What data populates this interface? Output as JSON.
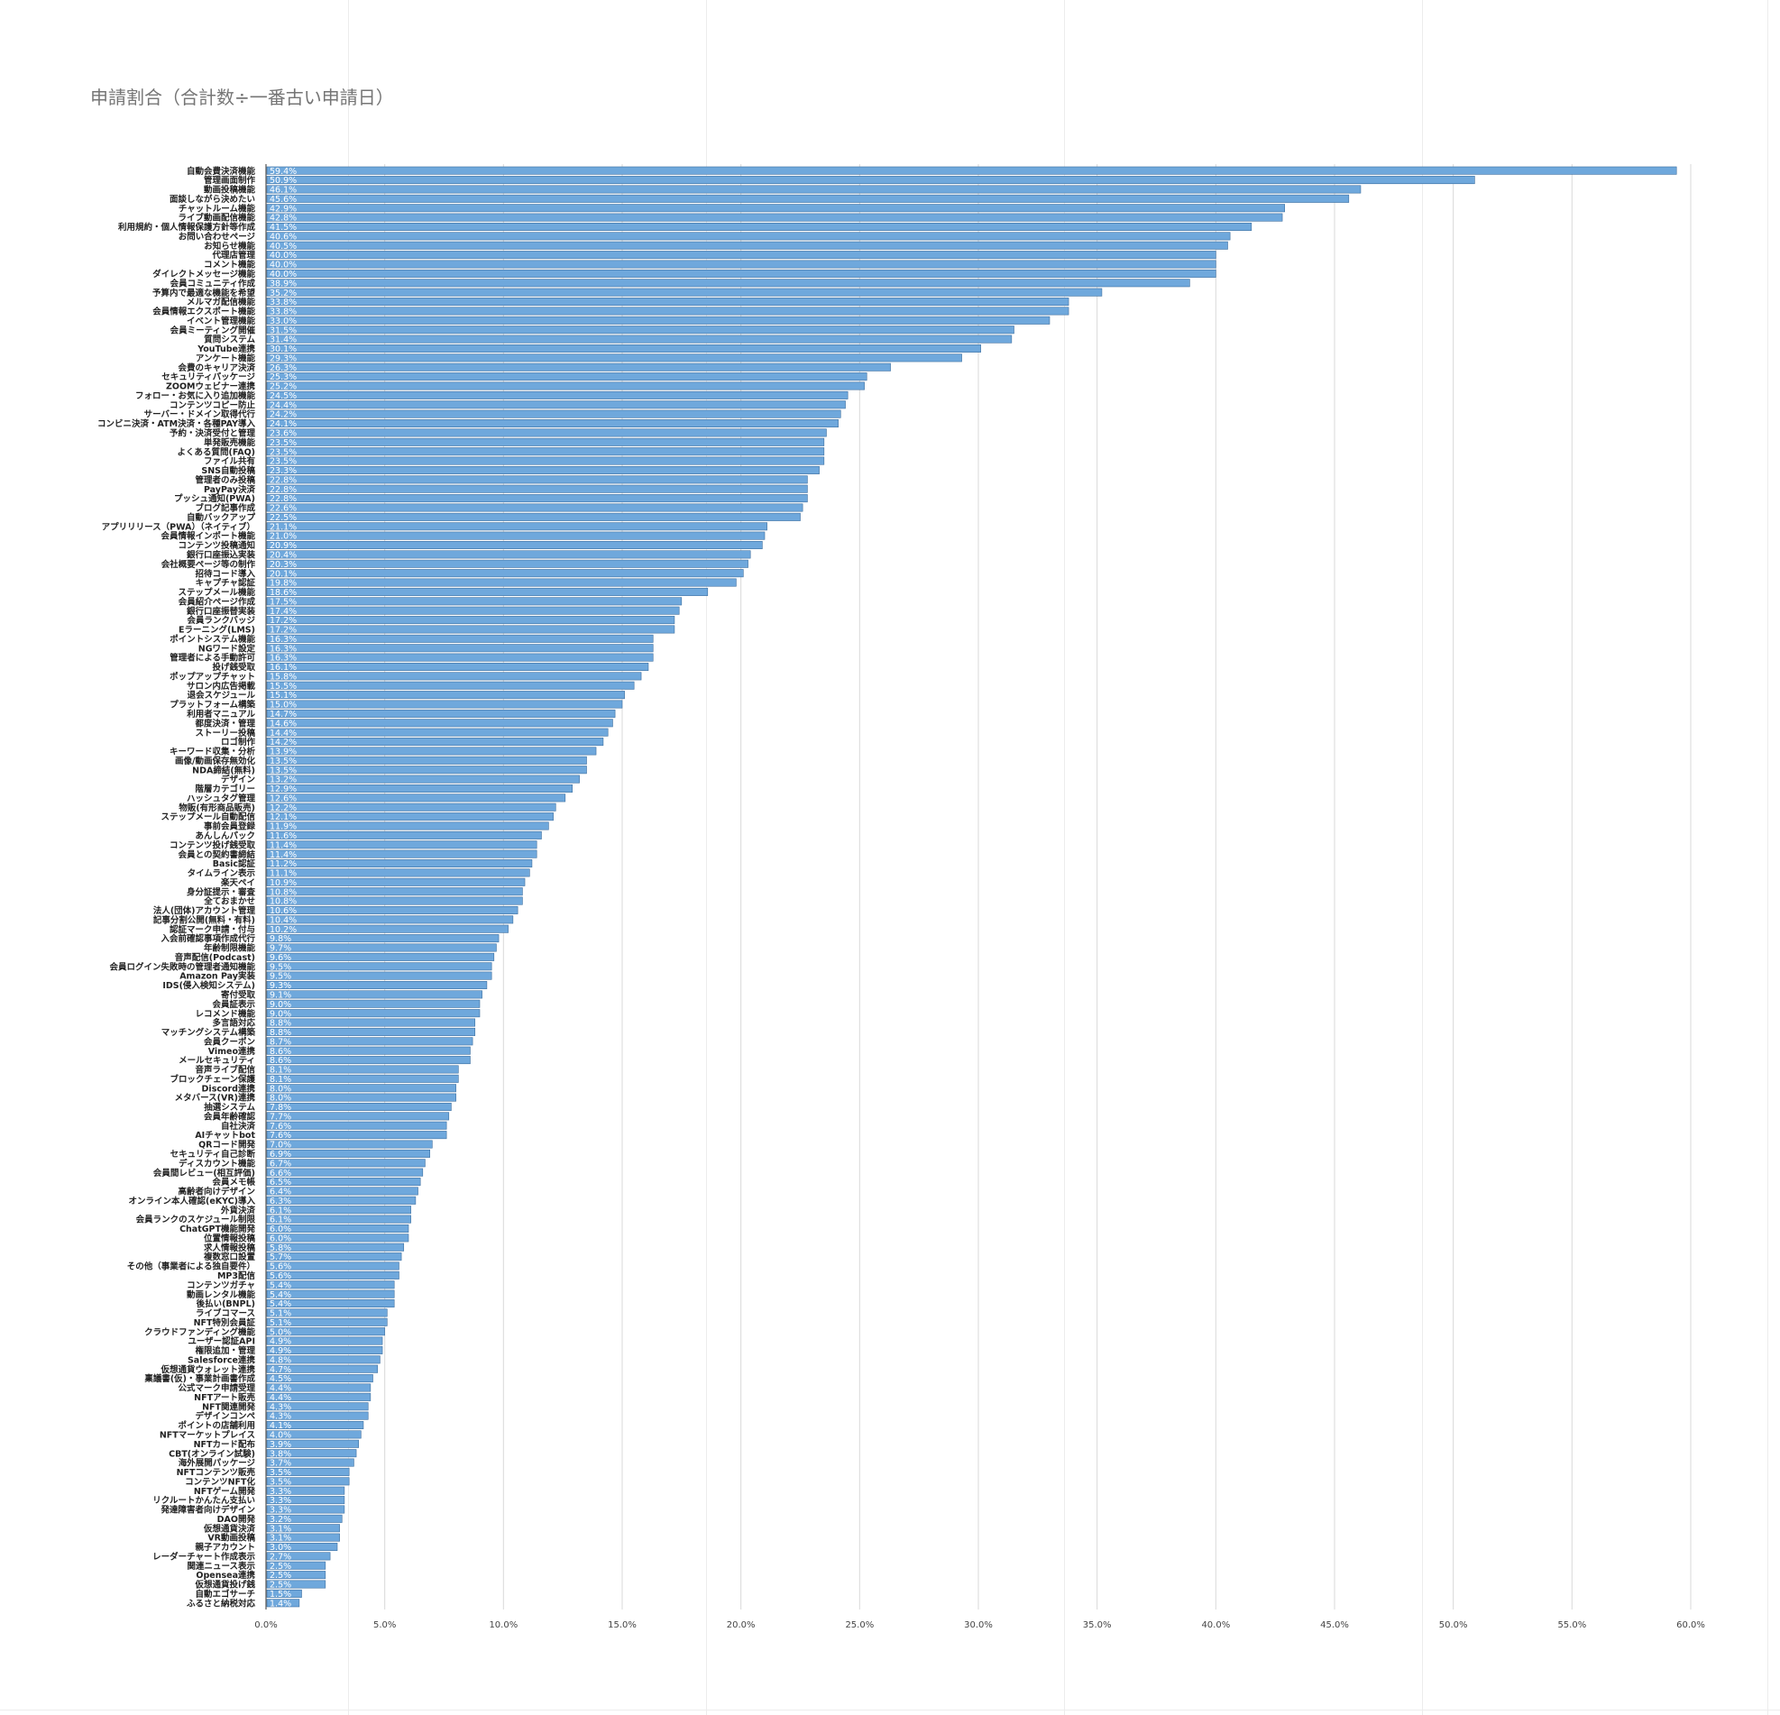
{
  "chart_data": {
    "type": "bar",
    "orientation": "horizontal",
    "title": "申請割合（合計数÷一番古い申請日）",
    "xlim": [
      0,
      60
    ],
    "x_ticks": [
      "0.0%",
      "5.0%",
      "10.0%",
      "15.0%",
      "20.0%",
      "25.0%",
      "30.0%",
      "35.0%",
      "40.0%",
      "45.0%",
      "50.0%",
      "55.0%",
      "60.0%"
    ],
    "grid": true,
    "bar_color": "#6fa8dc",
    "categories": [
      "自動会費決済機能",
      "管理画面制作",
      "動画投稿機能",
      "面談しながら決めたい",
      "チャットルーム機能",
      "ライブ動画配信機能",
      "利用規約・個人情報保護方針等作成",
      "お問い合わせページ",
      "お知らせ機能",
      "代理店管理",
      "コメント機能",
      "ダイレクトメッセージ機能",
      "会員コミュニティ作成",
      "予算内で最適な機能を希望",
      "メルマガ配信機能",
      "会員情報エクスポート機能",
      "イベント管理機能",
      "会員ミーティング開催",
      "質問システム",
      "YouTube連携",
      "アンケート機能",
      "会費のキャリア決済",
      "セキュリティパッケージ",
      "ZOOMウェビナー連携",
      "フォロー・お気に入り追加機能",
      "コンテンツコピー防止",
      "サーバー・ドメイン取得代行",
      "コンビニ決済・ATM決済・各種PAY導入",
      "予約・決済受付と管理",
      "単発販売機能",
      "よくある質問(FAQ)",
      "ファイル共有",
      "SNS自動投稿",
      "管理者のみ投稿",
      "PayPay決済",
      "プッシュ通知(PWA)",
      "ブログ記事作成",
      "自動バックアップ",
      "アプリリリース（PWA）（ネイティブ）",
      "会員情報インポート機能",
      "コンテンツ投稿通知",
      "銀行口座振込実装",
      "会社概要ページ等の制作",
      "招待コード導入",
      "キャプチャ認証",
      "ステップメール機能",
      "会員紹介ページ作成",
      "銀行口座振替実装",
      "会員ランクバッジ",
      "Eラーニング(LMS)",
      "ポイントシステム機能",
      "NGワード設定",
      "管理者による手動許可",
      "投げ銭受取",
      "ポップアップチャット",
      "サロン内広告掲載",
      "退会スケジュール",
      "プラットフォーム構築",
      "利用者マニュアル",
      "都度決済・管理",
      "ストーリー投稿",
      "ロゴ制作",
      "キーワード収集・分析",
      "画像/動画保存無効化",
      "NDA締結(無料)",
      "デザイン",
      "階層カテゴリー",
      "ハッシュタグ管理",
      "物販(有形商品販売)",
      "ステップメール自動配信",
      "事前会員登録",
      "あんしんパック",
      "コンテンツ投げ銭受取",
      "会員との契約書締結",
      "Basic認証",
      "タイムライン表示",
      "楽天ペイ",
      "身分証提示・審査",
      "全ておまかせ",
      "法人(団体)アカウント管理",
      "記事分割公開(無料・有料)",
      "認証マーク申請・付与",
      "入会前確認事項作成代行",
      "年齢制限機能",
      "音声配信(Podcast)",
      "会員ログイン失敗時の管理者通知機能",
      "Amazon Pay実装",
      "IDS(侵入検知システム)",
      "寄付受取",
      "会員証表示",
      "レコメンド機能",
      "多言語対応",
      "マッチングシステム構築",
      "会員クーポン",
      "Vimeo連携",
      "メールセキュリティ",
      "音声ライブ配信",
      "ブロックチェーン保護",
      "Discord連携",
      "メタバース(VR)連携",
      "抽選システム",
      "会員年齢確認",
      "自社決済",
      "AIチャットbot",
      "QRコード開発",
      "セキュリティ自己診断",
      "ディスカウント機能",
      "会員間レビュー(相互評価)",
      "会員メモ帳",
      "高齢者向けデザイン",
      "オンライン本人確認(eKYC)導入",
      "外貨決済",
      "会員ランクのスケジュール制限",
      "ChatGPT機能開発",
      "位置情報投稿",
      "求人情報投稿",
      "複数窓口設置",
      "その他（事業者による独自要件）",
      "MP3配信",
      "コンテンツガチャ",
      "動画レンタル機能",
      "後払い(BNPL)",
      "ライブコマース",
      "NFT特別会員証",
      "クラウドファンディング機能",
      "ユーザー認証API",
      "権限追加・管理",
      "Salesforce連携",
      "仮想通貨ウォレット連携",
      "稟議書(仮)・事業計画書作成",
      "公式マーク申請受理",
      "NFTアート販売",
      "NFT関連開発",
      "デザインコンペ",
      "ポイントの店舗利用",
      "NFTマーケットプレイス",
      "NFTカード配布",
      "CBT(オンライン試験)",
      "海外展開パッケージ",
      "NFTコンテンツ販売",
      "コンテンツNFT化",
      "NFTゲーム開発",
      "リクルートかんたん支払い",
      "発達障害者向けデザイン",
      "DAO開発",
      "仮想通貨決済",
      "VR動画投稿",
      "親子アカウント",
      "レーダーチャート作成表示",
      "関連ニュース表示",
      "Opensea連携",
      "仮想通貨投げ銭",
      "自動エゴサーチ",
      "ふるさと納税対応"
    ],
    "values": [
      59.4,
      50.9,
      46.1,
      45.6,
      42.9,
      42.8,
      41.5,
      40.6,
      40.5,
      40.0,
      40.0,
      40.0,
      38.9,
      35.2,
      33.8,
      33.8,
      33.0,
      31.5,
      31.4,
      30.1,
      29.3,
      26.3,
      25.3,
      25.2,
      24.5,
      24.4,
      24.2,
      24.1,
      23.6,
      23.5,
      23.5,
      23.5,
      23.3,
      22.8,
      22.8,
      22.8,
      22.6,
      22.5,
      21.1,
      21.0,
      20.9,
      20.4,
      20.3,
      20.1,
      19.8,
      18.6,
      17.5,
      17.4,
      17.2,
      17.2,
      16.3,
      16.3,
      16.3,
      16.1,
      15.8,
      15.5,
      15.1,
      15.0,
      14.7,
      14.6,
      14.4,
      14.2,
      13.9,
      13.5,
      13.5,
      13.2,
      12.9,
      12.6,
      12.2,
      12.1,
      11.9,
      11.6,
      11.4,
      11.4,
      11.2,
      11.1,
      10.9,
      10.8,
      10.8,
      10.6,
      10.4,
      10.2,
      9.8,
      9.7,
      9.6,
      9.5,
      9.5,
      9.3,
      9.1,
      9.0,
      9.0,
      8.8,
      8.8,
      8.7,
      8.6,
      8.6,
      8.1,
      8.1,
      8.0,
      8.0,
      7.8,
      7.7,
      7.6,
      7.6,
      7.0,
      6.9,
      6.7,
      6.6,
      6.5,
      6.4,
      6.3,
      6.1,
      6.1,
      6.0,
      6.0,
      5.8,
      5.7,
      5.6,
      5.6,
      5.4,
      5.4,
      5.4,
      5.1,
      5.1,
      5.0,
      4.9,
      4.9,
      4.8,
      4.7,
      4.5,
      4.4,
      4.4,
      4.3,
      4.3,
      4.1,
      4.0,
      3.9,
      3.8,
      3.7,
      3.5,
      3.5,
      3.3,
      3.3,
      3.3,
      3.2,
      3.1,
      3.1,
      3.0,
      2.7,
      2.5,
      2.5,
      2.5,
      1.5,
      1.4
    ],
    "data_labels": [
      "59.4%",
      "50.9%",
      "46.1%",
      "45.6%",
      "42.9%",
      "42.8%",
      "41.5%",
      "40.6%",
      "40.5%",
      "40.0%",
      "40.0%",
      "40.0%",
      "38.9%",
      "35.2%",
      "33.8%",
      "33.8%",
      "33.0%",
      "31.5%",
      "31.4%",
      "30.1%",
      "29.3%",
      "26.3%",
      "25.3%",
      "25.2%",
      "24.5%",
      "24.4%",
      "24.2%",
      "24.1%",
      "23.6%",
      "23.5%",
      "23.5%",
      "23.5%",
      "23.3%",
      "22.8%",
      "22.8%",
      "22.8%",
      "22.6%",
      "22.5%",
      "21.1%",
      "21.0%",
      "20.9%",
      "20.4%",
      "20.3%",
      "20.1%",
      "19.8%",
      "18.6%",
      "17.5%",
      "17.4%",
      "17.2%",
      "17.2%",
      "16.3%",
      "16.3%",
      "16.3%",
      "16.1%",
      "15.8%",
      "15.5%",
      "15.1%",
      "15.0%",
      "14.7%",
      "14.6%",
      "14.4%",
      "14.2%",
      "13.9%",
      "13.5%",
      "13.5%",
      "13.2%",
      "12.9%",
      "12.6%",
      "12.2%",
      "12.1%",
      "11.9%",
      "11.6%",
      "11.4%",
      "11.4%",
      "11.2%",
      "11.1%",
      "10.9%",
      "10.8%",
      "10.8%",
      "10.6%",
      "10.4%",
      "10.2%",
      "9.8%",
      "9.7%",
      "9.6%",
      "9.5%",
      "9.5%",
      "9.3%",
      "9.1%",
      "9.0%",
      "9.0%",
      "8.8%",
      "8.8%",
      "8.7%",
      "8.6%",
      "8.6%",
      "8.1%",
      "8.1%",
      "8.0%",
      "8.0%",
      "7.8%",
      "7.7%",
      "7.6%",
      "7.6%",
      "7.0%",
      "6.9%",
      "6.7%",
      "6.6%",
      "6.5%",
      "6.4%",
      "6.3%",
      "6.1%",
      "6.1%",
      "6.0%",
      "6.0%",
      "5.8%",
      "5.7%",
      "5.6%",
      "5.6%",
      "5.4%",
      "5.4%",
      "5.4%",
      "5.1%",
      "5.1%",
      "5.0%",
      "4.9%",
      "4.9%",
      "4.8%",
      "4.7%",
      "4.5%",
      "4.4%",
      "4.4%",
      "4.3%",
      "4.3%",
      "4.1%",
      "4.0%",
      "3.9%",
      "3.8%",
      "3.7%",
      "3.5%",
      "3.5%",
      "3.3%",
      "3.3%",
      "3.3%",
      "3.2%",
      "3.1%",
      "3.1%",
      "3.0%",
      "2.7%",
      "2.5%",
      "2.5%",
      "2.5%",
      "1.5%",
      "1.4%"
    ]
  }
}
